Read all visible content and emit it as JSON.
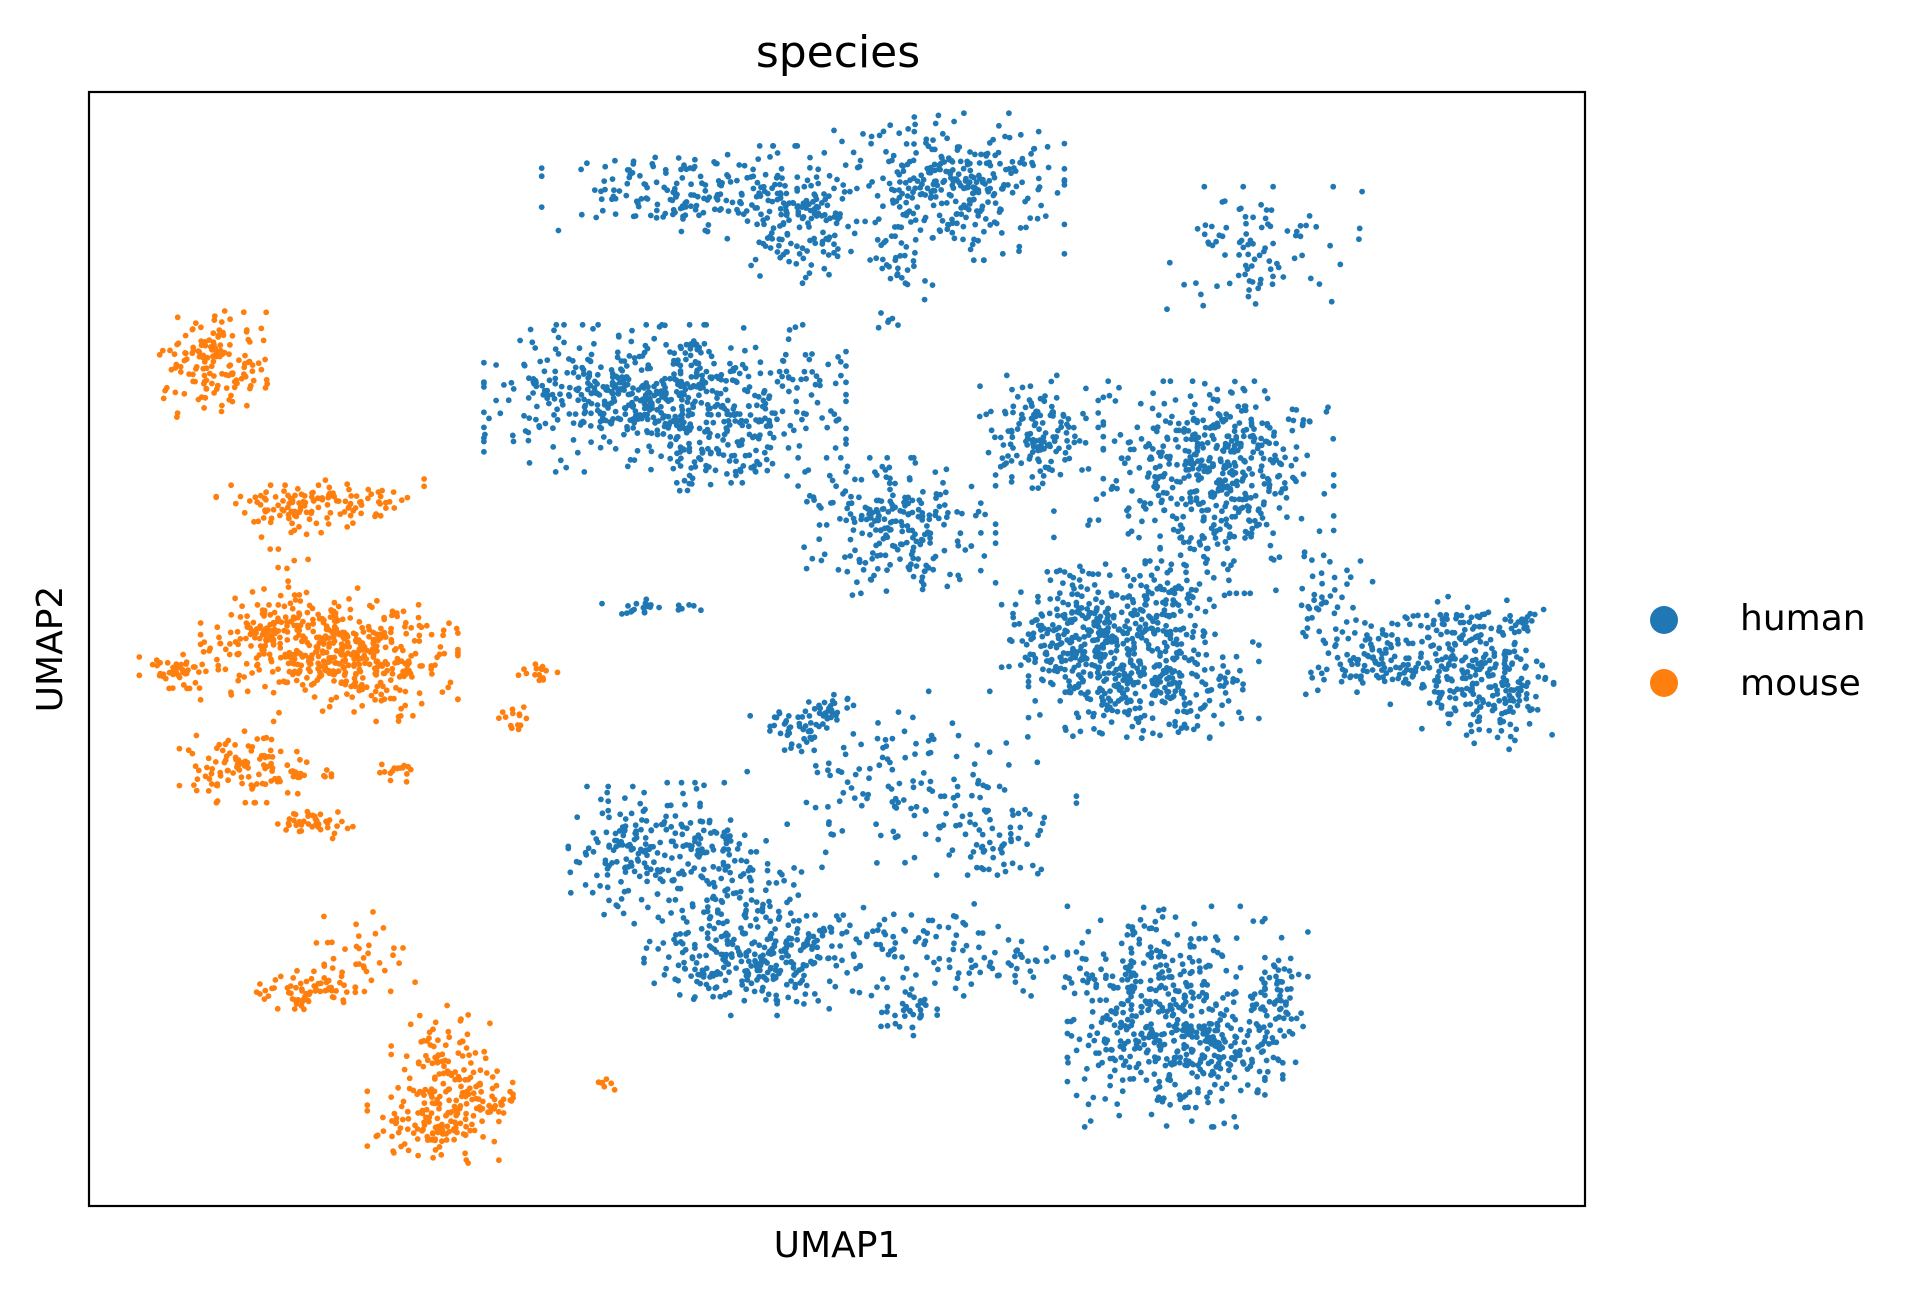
{
  "chart_data": {
    "type": "scatter",
    "title": "species",
    "xlabel": "UMAP1",
    "ylabel": "UMAP2",
    "xlim": [
      0,
      100
    ],
    "ylim": [
      0,
      100
    ],
    "grid": false,
    "ticks": false,
    "legend": {
      "placement": "right-outside"
    },
    "series": [
      {
        "name": "human",
        "color": "#1f77b4",
        "clusters": [
          {
            "cx": 39.5,
            "cy": 91.0,
            "sx": 4.2,
            "sy": 1.6,
            "n": 160
          },
          {
            "cx": 47.0,
            "cy": 89.0,
            "sx": 2.0,
            "sy": 2.8,
            "n": 160
          },
          {
            "cx": 57.5,
            "cy": 91.5,
            "sx": 3.5,
            "sy": 3.0,
            "n": 320
          },
          {
            "cx": 54.0,
            "cy": 84.0,
            "sx": 1.5,
            "sy": 1.2,
            "n": 25
          },
          {
            "cx": 53.5,
            "cy": 79.5,
            "sx": 0.4,
            "sy": 0.3,
            "n": 6
          },
          {
            "cx": 78.5,
            "cy": 86.0,
            "sx": 3.0,
            "sy": 2.5,
            "n": 90
          },
          {
            "cx": 38.5,
            "cy": 72.5,
            "sx": 5.5,
            "sy": 3.0,
            "n": 650
          },
          {
            "cx": 42.0,
            "cy": 66.5,
            "sx": 3.0,
            "sy": 1.5,
            "n": 60
          },
          {
            "cx": 54.0,
            "cy": 61.0,
            "sx": 3.0,
            "sy": 2.8,
            "n": 240
          },
          {
            "cx": 63.5,
            "cy": 69.5,
            "sx": 1.8,
            "sy": 2.3,
            "n": 140
          },
          {
            "cx": 75.5,
            "cy": 67.0,
            "sx": 3.5,
            "sy": 3.2,
            "n": 380
          },
          {
            "cx": 76.0,
            "cy": 60.5,
            "sx": 2.0,
            "sy": 2.5,
            "n": 100
          },
          {
            "cx": 70.0,
            "cy": 62.5,
            "sx": 2.5,
            "sy": 1.5,
            "n": 25
          },
          {
            "cx": 66.5,
            "cy": 51.5,
            "sx": 2.5,
            "sy": 2.8,
            "n": 240
          },
          {
            "cx": 70.5,
            "cy": 47.5,
            "sx": 3.5,
            "sy": 2.5,
            "n": 340
          },
          {
            "cx": 71.5,
            "cy": 53.5,
            "sx": 2.0,
            "sy": 2.0,
            "n": 110
          },
          {
            "cx": 82.5,
            "cy": 55.0,
            "sx": 1.5,
            "sy": 2.0,
            "n": 40
          },
          {
            "cx": 87.5,
            "cy": 49.0,
            "sx": 2.8,
            "sy": 1.8,
            "n": 160
          },
          {
            "cx": 93.5,
            "cy": 46.5,
            "sx": 2.0,
            "sy": 2.5,
            "n": 200
          },
          {
            "cx": 91.5,
            "cy": 52.5,
            "sx": 2.0,
            "sy": 1.0,
            "n": 50
          },
          {
            "cx": 96.0,
            "cy": 52.5,
            "sx": 0.8,
            "sy": 0.6,
            "n": 20
          },
          {
            "cx": 36.5,
            "cy": 53.5,
            "sx": 0.6,
            "sy": 0.4,
            "n": 12
          },
          {
            "cx": 38.0,
            "cy": 53.8,
            "sx": 2.0,
            "sy": 0.3,
            "n": 14
          },
          {
            "cx": 47.5,
            "cy": 43.0,
            "sx": 1.0,
            "sy": 1.0,
            "n": 40
          },
          {
            "cx": 49.5,
            "cy": 44.5,
            "sx": 0.8,
            "sy": 0.7,
            "n": 30
          },
          {
            "cx": 55.0,
            "cy": 38.5,
            "sx": 5.0,
            "sy": 3.5,
            "n": 130
          },
          {
            "cx": 60.5,
            "cy": 33.0,
            "sx": 2.0,
            "sy": 1.5,
            "n": 60
          },
          {
            "cx": 36.0,
            "cy": 31.5,
            "sx": 1.8,
            "sy": 2.8,
            "n": 130
          },
          {
            "cx": 40.0,
            "cy": 32.5,
            "sx": 2.0,
            "sy": 2.5,
            "n": 80
          },
          {
            "cx": 43.5,
            "cy": 28.0,
            "sx": 2.5,
            "sy": 2.5,
            "n": 120
          },
          {
            "cx": 41.5,
            "cy": 22.0,
            "sx": 2.0,
            "sy": 1.8,
            "n": 90
          },
          {
            "cx": 46.0,
            "cy": 21.5,
            "sx": 2.5,
            "sy": 2.0,
            "n": 150
          },
          {
            "cx": 53.5,
            "cy": 24.5,
            "sx": 4.0,
            "sy": 1.2,
            "n": 70
          },
          {
            "cx": 59.5,
            "cy": 21.5,
            "sx": 5.0,
            "sy": 1.2,
            "n": 70
          },
          {
            "cx": 54.5,
            "cy": 17.5,
            "sx": 1.0,
            "sy": 1.0,
            "n": 35
          },
          {
            "cx": 72.0,
            "cy": 17.0,
            "sx": 3.0,
            "sy": 4.5,
            "n": 500
          },
          {
            "cx": 76.5,
            "cy": 13.5,
            "sx": 1.5,
            "sy": 1.5,
            "n": 70
          },
          {
            "cx": 79.5,
            "cy": 18.0,
            "sx": 0.9,
            "sy": 3.0,
            "n": 70
          }
        ]
      },
      {
        "name": "mouse",
        "color": "#ff7f0e",
        "clusters": [
          {
            "cx": 8.5,
            "cy": 75.5,
            "sx": 1.8,
            "sy": 2.2,
            "n": 150
          },
          {
            "cx": 14.0,
            "cy": 62.5,
            "sx": 2.5,
            "sy": 1.0,
            "n": 90
          },
          {
            "cx": 18.0,
            "cy": 63.5,
            "sx": 2.0,
            "sy": 0.8,
            "n": 40
          },
          {
            "cx": 13.0,
            "cy": 56.5,
            "sx": 1.0,
            "sy": 2.5,
            "n": 20
          },
          {
            "cx": 14.5,
            "cy": 50.5,
            "sx": 3.2,
            "sy": 2.3,
            "n": 230
          },
          {
            "cx": 18.5,
            "cy": 49.0,
            "sx": 2.8,
            "sy": 2.5,
            "n": 270
          },
          {
            "cx": 6.0,
            "cy": 48.0,
            "sx": 1.2,
            "sy": 0.7,
            "n": 50
          },
          {
            "cx": 11.0,
            "cy": 51.0,
            "sx": 1.5,
            "sy": 1.2,
            "n": 30
          },
          {
            "cx": 10.0,
            "cy": 39.5,
            "sx": 1.8,
            "sy": 1.5,
            "n": 100
          },
          {
            "cx": 14.0,
            "cy": 39.0,
            "sx": 1.0,
            "sy": 0.6,
            "n": 20
          },
          {
            "cx": 15.0,
            "cy": 34.5,
            "sx": 1.2,
            "sy": 0.7,
            "n": 40
          },
          {
            "cx": 20.5,
            "cy": 39.0,
            "sx": 0.8,
            "sy": 0.5,
            "n": 16
          },
          {
            "cx": 30.0,
            "cy": 48.0,
            "sx": 0.6,
            "sy": 0.7,
            "n": 16
          },
          {
            "cx": 28.5,
            "cy": 43.5,
            "sx": 0.5,
            "sy": 0.6,
            "n": 14
          },
          {
            "cx": 14.5,
            "cy": 19.5,
            "sx": 1.5,
            "sy": 1.0,
            "n": 70
          },
          {
            "cx": 18.5,
            "cy": 22.0,
            "sx": 1.5,
            "sy": 2.0,
            "n": 35
          },
          {
            "cx": 23.5,
            "cy": 12.5,
            "sx": 1.5,
            "sy": 2.5,
            "n": 100
          },
          {
            "cx": 23.0,
            "cy": 7.0,
            "sx": 2.0,
            "sy": 1.5,
            "n": 110
          },
          {
            "cx": 26.5,
            "cy": 10.0,
            "sx": 1.2,
            "sy": 1.2,
            "n": 50
          },
          {
            "cx": 34.5,
            "cy": 11.0,
            "sx": 0.4,
            "sy": 0.3,
            "n": 7
          }
        ]
      }
    ]
  }
}
